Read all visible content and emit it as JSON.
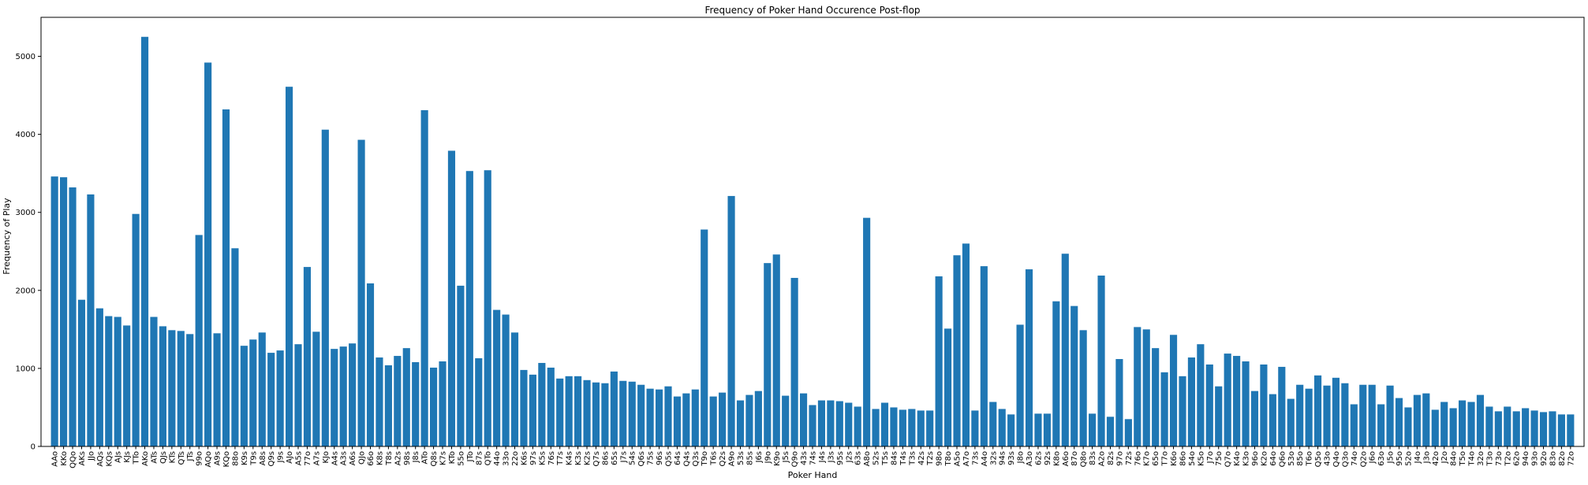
{
  "chart_data": {
    "type": "bar",
    "title": "Frequency of Poker Hand Occurence Post-flop",
    "xlabel": "Poker Hand",
    "ylabel": "Frequency of Play",
    "ylim": [
      0,
      5500
    ],
    "yticks": [
      0,
      1000,
      2000,
      3000,
      4000,
      5000
    ],
    "grid": false,
    "bar_color": "#1f77b4",
    "categories": [
      "AAo",
      "KKo",
      "QQo",
      "AKs",
      "JJo",
      "AQs",
      "KQs",
      "AJs",
      "KJs",
      "TTo",
      "AKo",
      "ATs",
      "QJs",
      "KTs",
      "QTs",
      "JTs",
      "99o",
      "AQo",
      "A9s",
      "KQo",
      "88o",
      "K9s",
      "T9s",
      "A8s",
      "Q9s",
      "J9s",
      "AJo",
      "A5s",
      "77o",
      "A7s",
      "KJo",
      "A4s",
      "A3s",
      "A6s",
      "QJo",
      "66o",
      "K8s",
      "T8s",
      "A2s",
      "98s",
      "J8s",
      "ATo",
      "Q8s",
      "K7s",
      "KTo",
      "55o",
      "JTo",
      "87s",
      "QTo",
      "44o",
      "33o",
      "22o",
      "K6s",
      "97s",
      "K5s",
      "76s",
      "T7s",
      "K4s",
      "K3s",
      "K2s",
      "Q7s",
      "86s",
      "65s",
      "J7s",
      "54s",
      "Q6s",
      "75s",
      "96s",
      "Q5s",
      "64s",
      "Q4s",
      "Q3s",
      "T9o",
      "T6s",
      "Q2s",
      "A9o",
      "53s",
      "85s",
      "J6s",
      "J9o",
      "K9o",
      "J5s",
      "Q9o",
      "43s",
      "74s",
      "J4s",
      "J3s",
      "95s",
      "J2s",
      "63s",
      "A8o",
      "52s",
      "T5s",
      "84s",
      "T4s",
      "T3s",
      "42s",
      "T2s",
      "98o",
      "T8o",
      "A5o",
      "A7o",
      "73s",
      "A4o",
      "32s",
      "94s",
      "93s",
      "J8o",
      "A3o",
      "62s",
      "92s",
      "K8o",
      "A6o",
      "87o",
      "Q8o",
      "83s",
      "A2o",
      "82s",
      "97o",
      "72s",
      "76o",
      "K7o",
      "65o",
      "T7o",
      "K6o",
      "86o",
      "54o",
      "K5o",
      "J7o",
      "75o",
      "Q7o",
      "K4o",
      "K3o",
      "96o",
      "K2o",
      "64o",
      "Q6o",
      "53o",
      "85o",
      "T6o",
      "Q5o",
      "43o",
      "Q4o",
      "Q3o",
      "74o",
      "Q2o",
      "J6o",
      "63o",
      "J5o",
      "95o",
      "52o",
      "J4o",
      "J3o",
      "42o",
      "J2o",
      "84o",
      "T5o",
      "T4o",
      "32o",
      "T3o",
      "73o",
      "T2o",
      "62o",
      "94o",
      "93o",
      "92o",
      "83o",
      "82o",
      "72o"
    ],
    "values": [
      3460,
      3450,
      3320,
      1880,
      3230,
      1770,
      1670,
      1660,
      1550,
      2980,
      5250,
      1660,
      1540,
      1490,
      1480,
      1440,
      2710,
      4920,
      1450,
      4320,
      2540,
      1290,
      1370,
      1460,
      1200,
      1230,
      4610,
      1310,
      2300,
      1470,
      4060,
      1250,
      1280,
      1320,
      3930,
      2090,
      1140,
      1040,
      1160,
      1260,
      1080,
      4310,
      1010,
      1090,
      3790,
      2060,
      3530,
      1130,
      3540,
      1750,
      1690,
      1460,
      980,
      920,
      1070,
      1010,
      870,
      900,
      900,
      850,
      820,
      810,
      960,
      840,
      830,
      790,
      740,
      730,
      770,
      640,
      680,
      730,
      2780,
      640,
      690,
      3210,
      590,
      660,
      710,
      2350,
      2460,
      650,
      2160,
      680,
      530,
      590,
      590,
      580,
      560,
      510,
      2930,
      480,
      560,
      500,
      470,
      480,
      460,
      460,
      2180,
      1510,
      2450,
      2600,
      460,
      2310,
      570,
      480,
      410,
      1560,
      2270,
      420,
      420,
      1860,
      2470,
      1800,
      1490,
      420,
      2190,
      380,
      1120,
      350,
      1530,
      1500,
      1260,
      950,
      1430,
      900,
      1140,
      1310,
      1050,
      770,
      1190,
      1160,
      1090,
      710,
      1050,
      670,
      1020,
      610,
      790,
      740,
      910,
      780,
      880,
      810,
      540,
      790,
      790,
      540,
      780,
      620,
      500,
      660,
      680,
      470,
      570,
      490,
      590,
      570,
      660,
      510,
      450,
      510,
      450,
      490,
      460,
      440,
      450,
      410,
      410
    ]
  }
}
